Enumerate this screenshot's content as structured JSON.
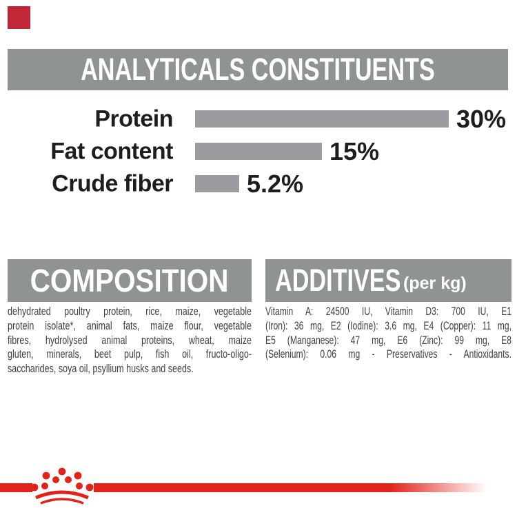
{
  "analyticals": {
    "title": "ANALYTICALS CONSTITUENTS"
  },
  "chart_data": {
    "type": "bar",
    "orientation": "horizontal",
    "title": "ANALYTICALS CONSTITUENTS",
    "categories": [
      "Protein",
      "Fat content",
      "Crude fiber"
    ],
    "values": [
      30,
      15,
      5.2
    ],
    "value_labels": [
      "30%",
      "15%",
      "5.2%"
    ],
    "unit": "%",
    "xlim": [
      0,
      30
    ],
    "grid": false,
    "legend": false,
    "bar_color": "#9a9c9f"
  },
  "composition": {
    "heading": "COMPOSITION",
    "lines": [
      "dehydrated poultry protein, rice, maize, vegetable",
      "protein isolate*, animal fats, maize flour, vegetable",
      "fibres, hydrolysed animal proteins, wheat, maize",
      "gluten, minerals, beet pulp, fish oil, fructo-oligo-",
      "saccharides, soya oil, psyllium husks and seeds."
    ],
    "full_text": "dehydrated poultry protein, rice, maize, vegetable protein isolate*, animal fats, maize flour, vegetable fibres, hydrolysed animal proteins, wheat, maize gluten, minerals, beet pulp, fish oil, fructo-oligo-saccharides, soya oil, psyllium husks and seeds."
  },
  "additives": {
    "heading": "ADDITIVES",
    "heading_suffix": "(per kg)",
    "lines": [
      "Vitamin A: 24500 IU, Vitamin D3: 700 IU, E1",
      "(Iron): 36 mg, E2 (Iodine): 3.6 mg, E4 (Copper): 11 mg,",
      "E5 (Manganese): 47 mg, E6 (Zinc): 99 mg, E8",
      "(Selenium): 0.06 mg - Preservatives - Antioxidants."
    ],
    "full_text": "Vitamin A: 24500 IU, Vitamin D3: 700 IU, E1 (Iron): 36 mg, E2 (Iodine): 3.6 mg, E4 (Copper): 11 mg, E5 (Manganese): 47 mg, E6 (Zinc): 99 mg, E8 (Selenium): 0.06 mg - Preservatives - Antioxidants."
  },
  "footer": {
    "logo": "royal-canin-crown"
  },
  "colors": {
    "brand_red": "#e2231a",
    "corner_square_red": "#c22737",
    "panel_gray": "#8f9394",
    "bar_gray": "#9a9c9f",
    "heading_text": "#ffffff",
    "chart_text": "#1d1d1b",
    "body_text": "#3f3f3e"
  }
}
